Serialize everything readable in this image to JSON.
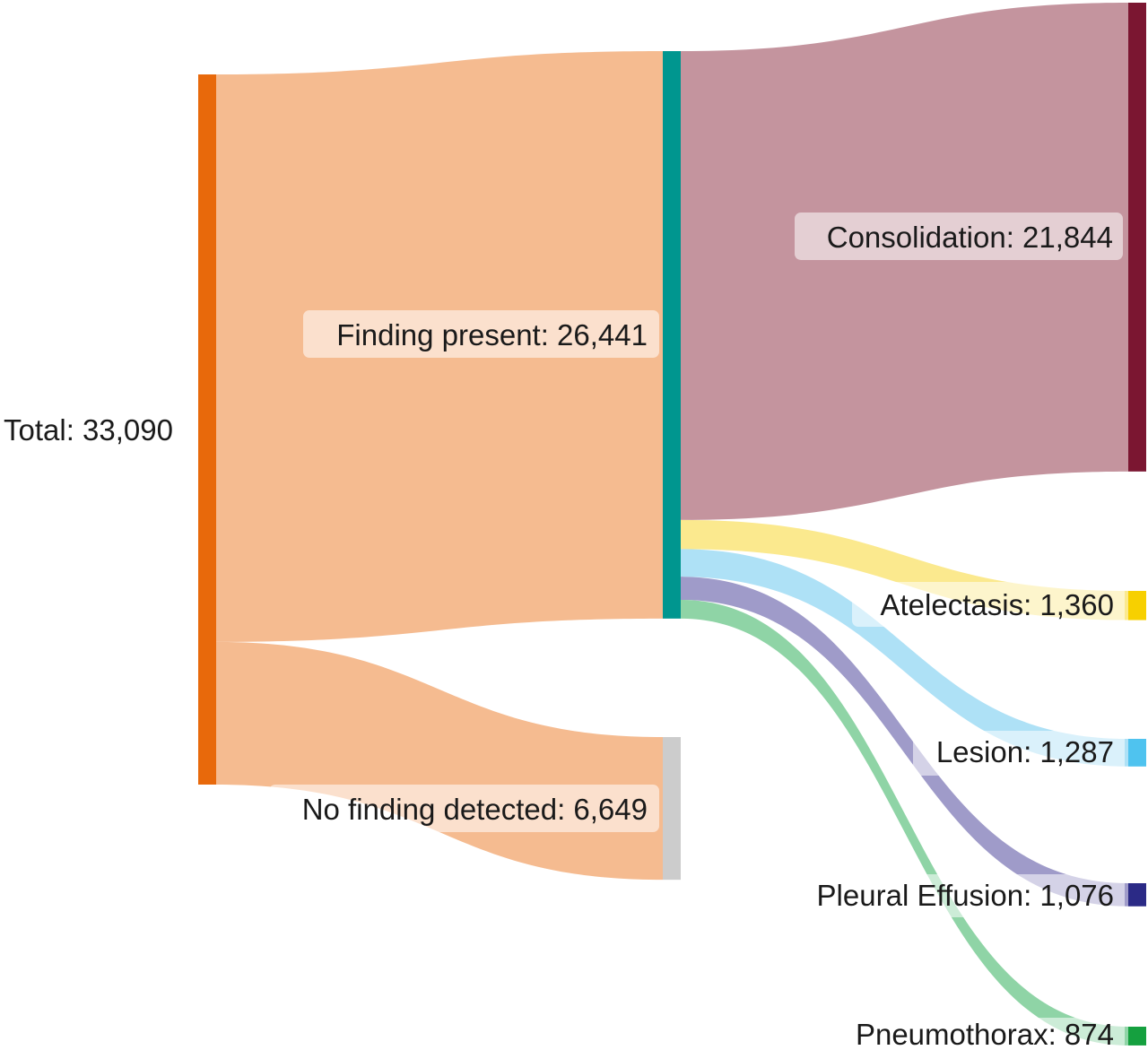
{
  "chart_data": {
    "type": "sankey",
    "colors": {
      "total": "#e8690b",
      "finding_present": "#00968f",
      "no_finding": "#cccccc",
      "consolidation": "#7b1631",
      "atelectasis": "#f7d000",
      "lesion": "#4fc3ef",
      "pleural_effusion": "#2b2a86",
      "pneumothorax": "#15a03f",
      "link_total": "#f5bb90",
      "link_consolidation": "#c4949e",
      "link_atelectasis": "#fbe98e",
      "link_lesion": "#aee1f6",
      "link_pleural_effusion": "#9f9bc9",
      "link_pneumothorax": "#8fd4a6"
    },
    "nodes": [
      {
        "id": "total",
        "label": "Total: 33,090",
        "value": 33090
      },
      {
        "id": "finding_present",
        "label": "Finding present: 26,441",
        "value": 26441
      },
      {
        "id": "no_finding",
        "label": "No finding detected: 6,649",
        "value": 6649
      },
      {
        "id": "consolidation",
        "label": "Consolidation: 21,844",
        "value": 21844
      },
      {
        "id": "atelectasis",
        "label": "Atelectasis: 1,360",
        "value": 1360
      },
      {
        "id": "lesion",
        "label": "Lesion: 1,287",
        "value": 1287
      },
      {
        "id": "pleural_effusion",
        "label": "Pleural Effusion: 1,076",
        "value": 1076
      },
      {
        "id": "pneumothorax",
        "label": "Pneumothorax: 874",
        "value": 874
      }
    ],
    "links": [
      {
        "source": "total",
        "target": "finding_present",
        "value": 26441
      },
      {
        "source": "total",
        "target": "no_finding",
        "value": 6649
      },
      {
        "source": "finding_present",
        "target": "consolidation",
        "value": 21844
      },
      {
        "source": "finding_present",
        "target": "atelectasis",
        "value": 1360
      },
      {
        "source": "finding_present",
        "target": "lesion",
        "value": 1287
      },
      {
        "source": "finding_present",
        "target": "pleural_effusion",
        "value": 1076
      },
      {
        "source": "finding_present",
        "target": "pneumothorax",
        "value": 874
      }
    ]
  }
}
